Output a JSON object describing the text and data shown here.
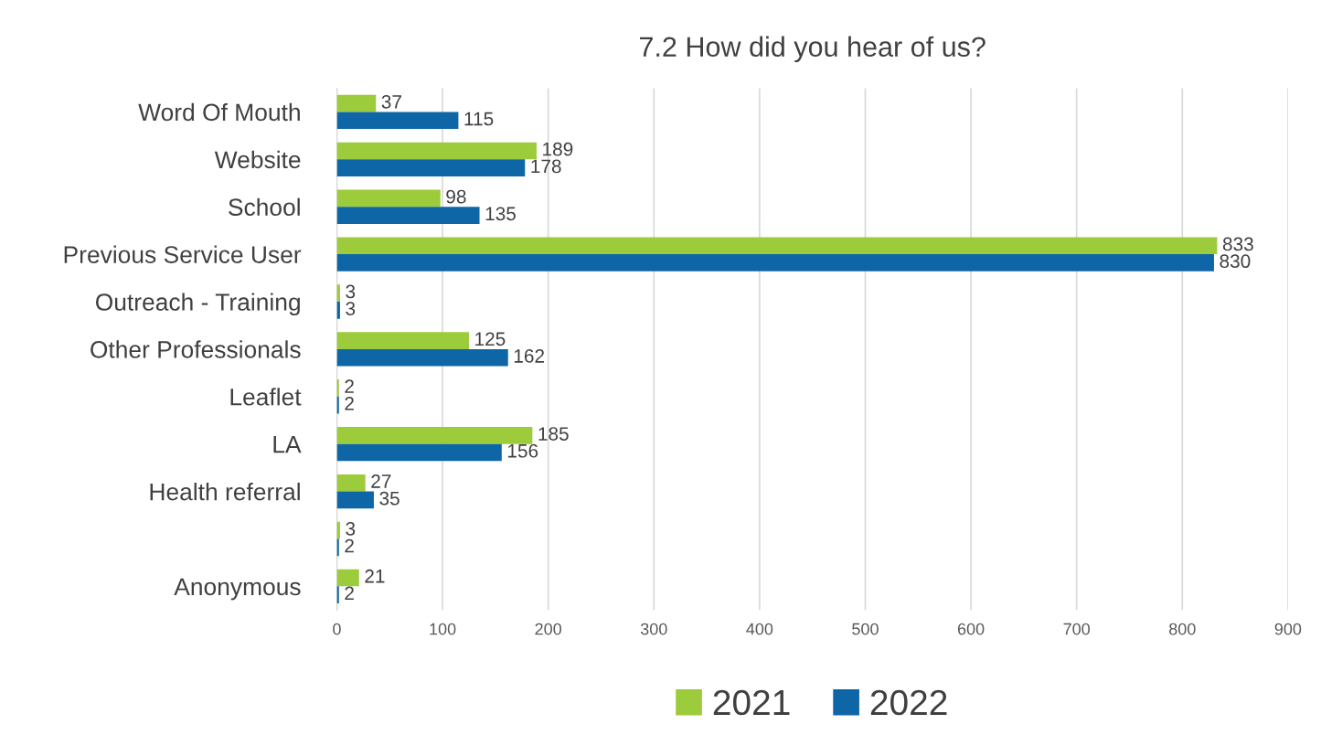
{
  "chart_data": {
    "type": "bar",
    "orientation": "horizontal",
    "title": "7.2 How did you hear of us?",
    "categories": [
      "Word Of Mouth",
      "Website",
      "School",
      "Previous Service User",
      "Outreach - Training",
      "Other Professionals",
      "Leaflet",
      "LA",
      "Health referral",
      null,
      "Anonymous"
    ],
    "series": [
      {
        "name": "2021",
        "color": "#9ccb3b",
        "values": [
          37,
          189,
          98,
          833,
          3,
          125,
          2,
          185,
          27,
          3,
          21
        ]
      },
      {
        "name": "2022",
        "color": "#0f66a6",
        "values": [
          115,
          178,
          135,
          830,
          3,
          162,
          2,
          156,
          35,
          2,
          2
        ]
      }
    ],
    "xlim": [
      0,
      900
    ],
    "xticks": [
      0,
      100,
      200,
      300,
      400,
      500,
      600,
      700,
      800,
      900
    ],
    "grid": "x",
    "legend": "bottom",
    "data_labels": true
  }
}
